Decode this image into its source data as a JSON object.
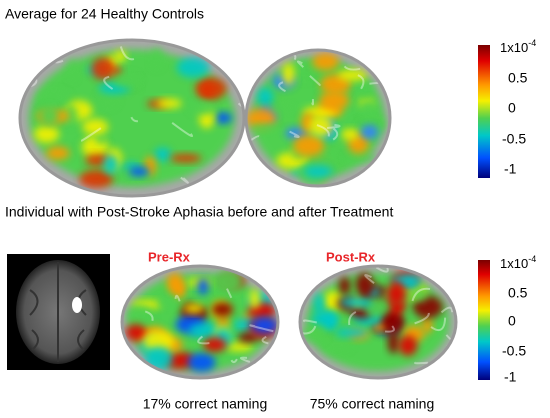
{
  "top": {
    "title": "Average for 24 Healthy Controls",
    "colorbar": {
      "max_label": {
        "base": "1x10",
        "exponent": "-4"
      },
      "ticks": [
        "0.5",
        "0",
        "-0.5",
        "-1"
      ]
    }
  },
  "bottom": {
    "title": "Individual with Post-Stroke Aphasia before and after Treatment",
    "panels": [
      {
        "label": "Pre-Rx",
        "caption": "17% correct naming"
      },
      {
        "label": "Post-Rx",
        "caption": "75% correct naming"
      }
    ],
    "colorbar": {
      "max_label": {
        "base": "1x10",
        "exponent": "-4"
      },
      "ticks": [
        "0.5",
        "0",
        "-0.5",
        "-1"
      ]
    }
  }
}
